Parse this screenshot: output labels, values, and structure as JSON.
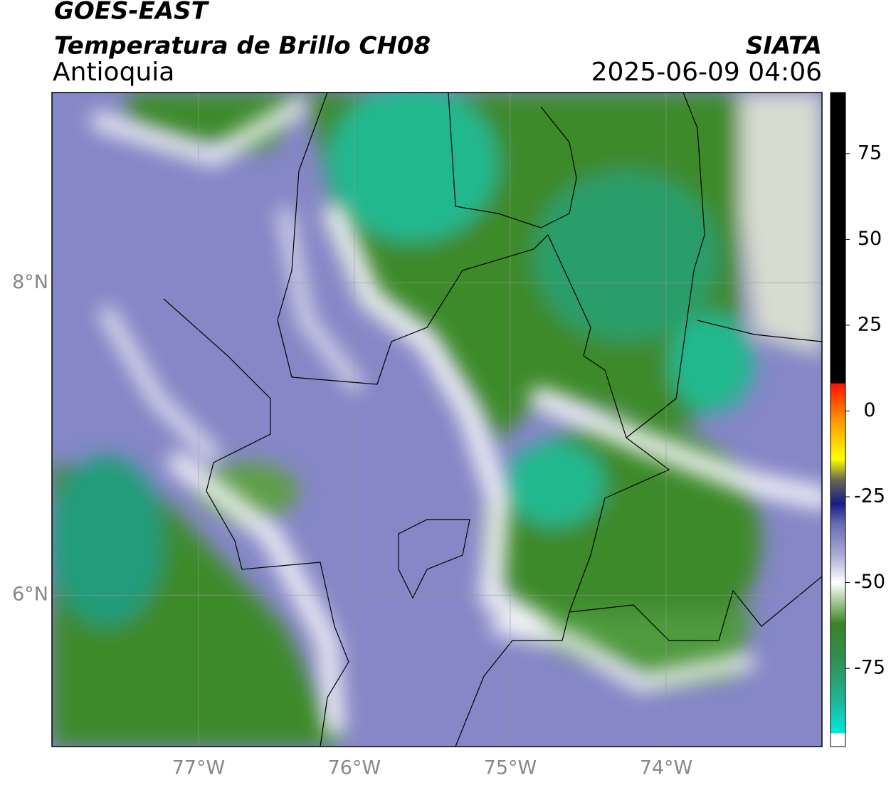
{
  "header": {
    "source": "GOES-EAST",
    "product": "Temperatura de Brillo CH08",
    "region": "Antioquia",
    "agency": "SIATA",
    "timestamp": "2025-06-09 04:06"
  },
  "map": {
    "xlim": [
      -77.94,
      -73.0
    ],
    "ylim": [
      5.03,
      9.22
    ],
    "xticks": [
      {
        "value": -77,
        "label": "77°W"
      },
      {
        "value": -76,
        "label": "76°W"
      },
      {
        "value": -75,
        "label": "75°W"
      },
      {
        "value": -74,
        "label": "74°W"
      }
    ],
    "yticks": [
      {
        "value": 8,
        "label": "8°N"
      },
      {
        "value": 6,
        "label": "6°N"
      }
    ],
    "grid": true
  },
  "colorbar": {
    "clim": [
      -97.8,
      92.8
    ],
    "ticks": [
      75,
      50,
      25,
      0,
      -25,
      -50,
      -75
    ],
    "stops": [
      {
        "value": -97.8,
        "color": "#ffffff"
      },
      {
        "value": -94,
        "color": "#ffffff"
      },
      {
        "value": -93.9,
        "color": "#00e8e0"
      },
      {
        "value": -85,
        "color": "#1fb89a"
      },
      {
        "value": -72,
        "color": "#2f8f50"
      },
      {
        "value": -62,
        "color": "#3a8428"
      },
      {
        "value": -56,
        "color": "#9ec48e"
      },
      {
        "value": -50,
        "color": "#ffffff"
      },
      {
        "value": -42,
        "color": "#a9abd6"
      },
      {
        "value": -33,
        "color": "#6a6cb6"
      },
      {
        "value": -27,
        "color": "#1a1a8a"
      },
      {
        "value": -20,
        "color": "#6a6a50"
      },
      {
        "value": -14,
        "color": "#ffff00"
      },
      {
        "value": -3,
        "color": "#ff9900"
      },
      {
        "value": 8,
        "color": "#ff1100"
      },
      {
        "value": 8.1,
        "color": "#000000"
      },
      {
        "value": 92.8,
        "color": "#000000"
      }
    ]
  }
}
